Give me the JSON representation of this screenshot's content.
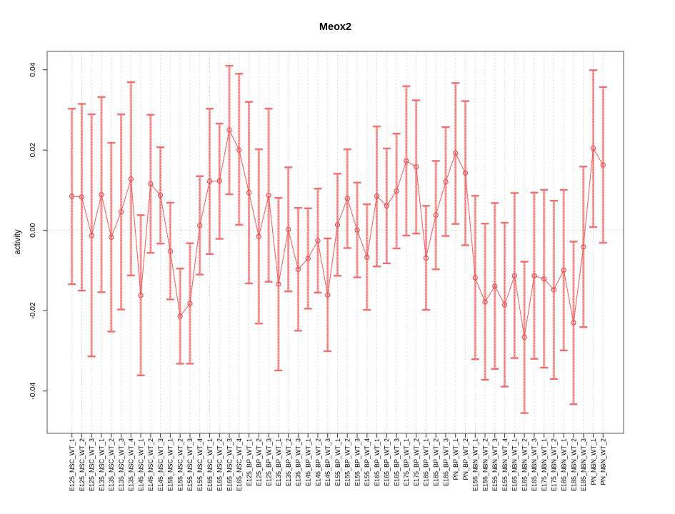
{
  "chart_data": {
    "type": "scatter",
    "title": "Meox2",
    "ylabel": "activity",
    "xlabel": "",
    "ylim": [
      -0.0505,
      0.0446
    ],
    "grid": "vertical dashed gridline per category, dotted horizontal line at 0",
    "legend": "none",
    "yticks": {
      "values": [
        0.04,
        0.02,
        0.0,
        -0.02,
        -0.04
      ],
      "labels": [
        "0.04",
        "0.02",
        "0.00",
        "-0.02",
        "-0.04"
      ]
    },
    "categories": [
      "E125_NSC_WT_1",
      "E125_NSC_WT_2",
      "E125_NSC_WT_3",
      "E135_NSC_WT_1",
      "E135_NSC_WT_2",
      "E135_NSC_WT_3",
      "E135_NSC_WT_4",
      "E145_NSC_WT_1",
      "E145_NSC_WT_2",
      "E145_NSC_WT_3",
      "E155_NSC_WT_1",
      "E155_NSC_WT_2",
      "E155_NSC_WT_3",
      "E155_NSC_WT_4",
      "E165_NSC_WT_1",
      "E165_NSC_WT_2",
      "E165_NSC_WT_3",
      "E165_NSC_WT_4",
      "E125_BP_WT_1",
      "E125_BP_WT_2",
      "E125_BP_WT_3",
      "E135_BP_WT_1",
      "E135_BP_WT_2",
      "E135_BP_WT_3",
      "E145_BP_WT_1",
      "E145_BP_WT_2",
      "E145_BP_WT_3",
      "E155_BP_WT_1",
      "E155_BP_WT_2",
      "E155_BP_WT_3",
      "E155_BP_WT_4",
      "E165_BP_WT_1",
      "E165_BP_WT_2",
      "E165_BP_WT_3",
      "E175_BP_WT_1",
      "E175_BP_WT_2",
      "E185_BP_WT_1",
      "E185_BP_WT_2",
      "E185_BP_WT_3",
      "PN_BP_WT_1",
      "PN_BP_WT_2",
      "E155_NBN_WT_1",
      "E155_NBN_WT_2",
      "E155_NBN_WT_3",
      "E155_NBN_WT_4",
      "E165_NBN_WT_1",
      "E165_NBN_WT_2",
      "E165_NBN_WT_3",
      "E175_NBN_WT_1",
      "E175_NBN_WT_2",
      "E185_NBN_WT_1",
      "E185_NBN_WT_2",
      "E185_NBN_WT_3",
      "PN_NBN_WT_1",
      "PN_NBN_WT_2"
    ],
    "series": [
      {
        "name": "activity",
        "values": [
          0.0085,
          0.0083,
          -0.0013,
          0.0089,
          -0.0017,
          0.0046,
          0.0128,
          -0.0162,
          0.0116,
          0.0087,
          -0.0052,
          -0.0214,
          -0.0182,
          0.0012,
          0.0122,
          0.0123,
          0.025,
          0.02,
          0.0094,
          -0.0015,
          0.0087,
          -0.0134,
          0.0002,
          -0.0097,
          -0.007,
          -0.0026,
          -0.0161,
          0.0014,
          0.0079,
          0.0001,
          -0.0067,
          0.0085,
          0.0061,
          0.0098,
          0.0173,
          0.0158,
          -0.0069,
          0.0038,
          0.0121,
          0.0192,
          0.0143,
          -0.0118,
          -0.0178,
          -0.0139,
          -0.0185,
          -0.0113,
          -0.0266,
          -0.0113,
          -0.0121,
          -0.0148,
          -0.0099,
          -0.023,
          -0.0041,
          0.0204,
          0.0163
        ],
        "error_low": [
          -0.0134,
          -0.015,
          -0.0314,
          -0.0154,
          -0.0252,
          -0.0197,
          -0.0112,
          -0.0361,
          -0.0056,
          -0.0033,
          -0.0172,
          -0.0332,
          -0.0332,
          -0.011,
          -0.0059,
          -0.0021,
          0.009,
          0.0014,
          -0.0132,
          -0.0232,
          -0.0128,
          -0.0349,
          -0.0152,
          -0.025,
          -0.0195,
          -0.0155,
          -0.0301,
          -0.0113,
          -0.0044,
          -0.0117,
          -0.0198,
          -0.009,
          -0.0082,
          -0.0045,
          -0.0013,
          -0.0008,
          -0.0198,
          -0.0097,
          -0.0014,
          0.0016,
          -0.0037,
          -0.0321,
          -0.0372,
          -0.0345,
          -0.0389,
          -0.0318,
          -0.0455,
          -0.032,
          -0.0342,
          -0.037,
          -0.0299,
          -0.0433,
          -0.0241,
          0.0008,
          -0.0031
        ],
        "error_high": [
          0.0303,
          0.0315,
          0.0289,
          0.0332,
          0.0218,
          0.0289,
          0.0369,
          0.0038,
          0.0288,
          0.0207,
          0.0069,
          -0.0095,
          -0.0032,
          0.0135,
          0.0303,
          0.0266,
          0.041,
          0.039,
          0.032,
          0.0202,
          0.0303,
          0.0081,
          0.0157,
          0.0056,
          0.0055,
          0.0104,
          -0.002,
          0.0141,
          0.0202,
          0.0119,
          0.0065,
          0.0259,
          0.0204,
          0.0241,
          0.0359,
          0.0324,
          0.0061,
          0.0173,
          0.0257,
          0.0367,
          0.0322,
          0.0086,
          0.0017,
          0.0068,
          0.0019,
          0.0093,
          -0.0078,
          0.0094,
          0.0101,
          0.0074,
          0.0101,
          -0.0028,
          0.0159,
          0.0399,
          0.0357
        ]
      }
    ],
    "colors": {
      "line": "#ee5555",
      "marker": "#e84f4f",
      "error_bar": "rgba(247,150,150,0.85)",
      "error_bar_core": "rgba(225,70,70,0.8)",
      "error_cap": "#ef7070",
      "grid": "#dadada",
      "zero_line": "#c9c9c9",
      "box": "#7d7d7d",
      "tick": "#454545",
      "text": "#000000"
    }
  }
}
